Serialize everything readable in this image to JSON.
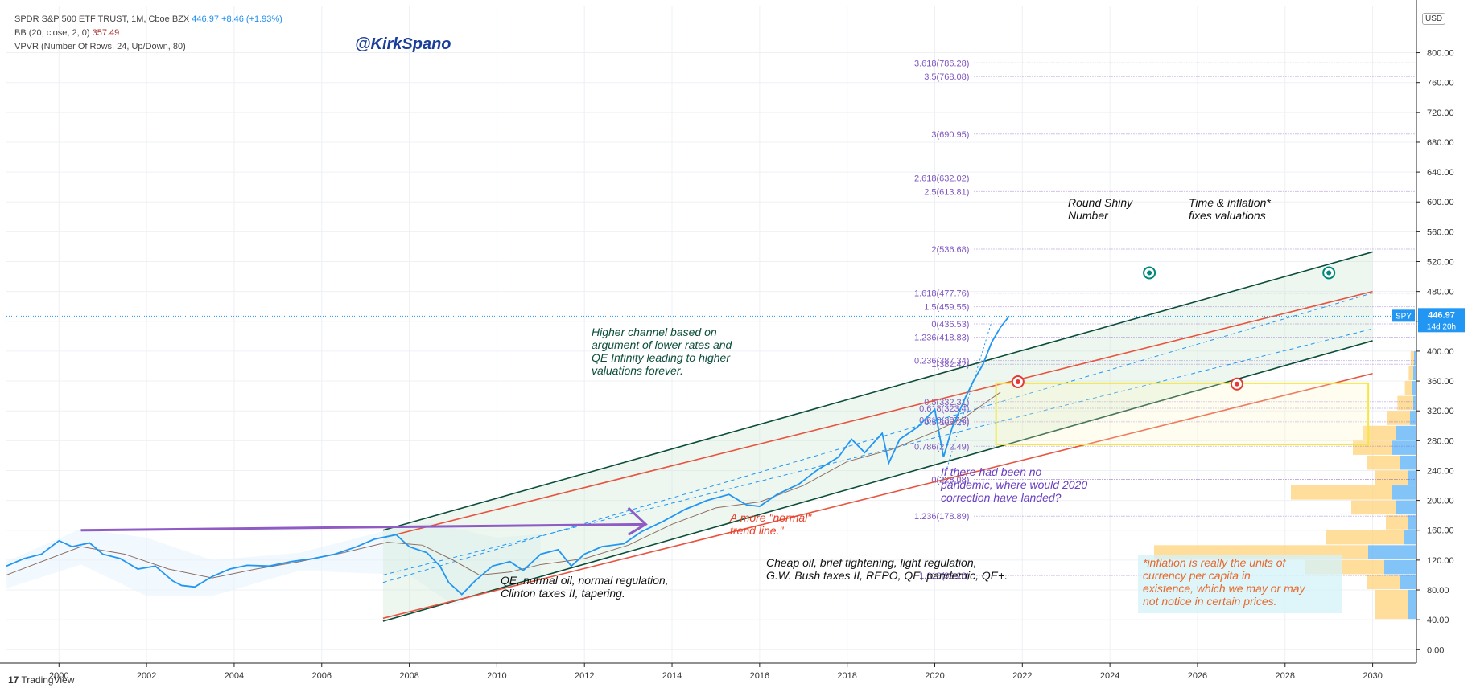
{
  "legend": {
    "title": "SPDR S&P 500 ETF TRUST, 1M, Cboe BZX",
    "price": "446.97",
    "change": "+8.46 (+1.93%)",
    "bb_label": "BB (20, close, 2, 0)",
    "bb_value": "357.49",
    "vpvr_label": "VPVR (Number Of Rows, 24, Up/Down, 80)"
  },
  "watermark": "@KirkSpano",
  "branding": "TradingView",
  "currency": "USD",
  "price_tag": {
    "ticker": "SPY",
    "price": "446.97",
    "countdown": "14d 20h"
  },
  "annotations": {
    "higher_channel": [
      "Higher channel based on",
      "argument of lower rates and",
      "QE Infinity leading to higher",
      "valuations forever."
    ],
    "round_shiny": [
      "Round Shiny",
      "Number"
    ],
    "time_inflation": [
      "Time & inflation*",
      "fixes valuations"
    ],
    "pandemic": [
      "If there had been no",
      "pandemic, where would 2020",
      "correction have landed?"
    ],
    "normal_trend": [
      "A more \"normal\"",
      "trend line.\""
    ],
    "cheap_oil": [
      "Cheap oil, brief tightening, light regulation,",
      "G.W. Bush taxes II, REPO, QE, pandemic, QE+."
    ],
    "qe_normal": [
      "QE, normal oil, normal regulation,",
      "Clinton taxes II, tapering."
    ],
    "inflation_note": [
      "*inflation is really the units of",
      "currency per capita in",
      "existence, which we may or may",
      "not notice in certain prices."
    ]
  },
  "fib_upper": [
    {
      "label": "3.618(786.28)",
      "value": 786.28
    },
    {
      "label": "3.5(768.08)",
      "value": 768.08
    },
    {
      "label": "3(690.95)",
      "value": 690.95
    },
    {
      "label": "2.618(632.02)",
      "value": 632.02
    },
    {
      "label": "2.5(613.81)",
      "value": 613.81
    },
    {
      "label": "2(536.68)",
      "value": 536.68
    },
    {
      "label": "1.618(477.76)",
      "value": 477.76
    },
    {
      "label": "1.5(459.55)",
      "value": 459.55
    },
    {
      "label": "0(436.53)",
      "value": 436.53
    },
    {
      "label": "1.236(418.83)",
      "value": 418.83
    },
    {
      "label": "0.236(387.34)",
      "value": 387.34
    },
    {
      "label": "1(382.42)",
      "value": 382.42
    },
    {
      "label": "0.5(332.31)",
      "value": 332.31
    },
    {
      "label": "0.618(323.4)",
      "value": 323.4
    },
    {
      "label": "0.618(307.7)",
      "value": 307.7
    },
    {
      "label": "0.5(305.29)",
      "value": 305.29
    },
    {
      "label": "0.786(272.49)",
      "value": 272.49
    },
    {
      "label": "1(228.08)",
      "value": 228.08
    },
    {
      "label": "0(228.18)",
      "value": 228.18
    },
    {
      "label": "1.236(178.89)",
      "value": 178.89
    },
    {
      "label": "1.618(99.26)",
      "value": 99.26
    }
  ],
  "colors": {
    "price": "#2196f3",
    "bb_basis": "#8d6e63",
    "channel_green": "#0b4d3a",
    "channel_red": "#e8533f",
    "fib": "#7e57c2",
    "box": "#f5e642",
    "purple_line": "#8e5cc4",
    "vol_up": "#64b5f6",
    "vol_down": "#ffd27a"
  },
  "chart_data": {
    "type": "line",
    "title": "SPDR S&P 500 ETF TRUST, 1M, Cboe BZX",
    "ylabel": "USD",
    "xlim": [
      1998.8,
      2031.0
    ],
    "ylim": [
      -18,
      862
    ],
    "x_ticks": [
      2000,
      2002,
      2004,
      2006,
      2008,
      2010,
      2012,
      2014,
      2016,
      2018,
      2020,
      2022,
      2024,
      2026,
      2028,
      2030
    ],
    "y_ticks": [
      0,
      40,
      80,
      120,
      160,
      200,
      240,
      280,
      320,
      360,
      400,
      440,
      480,
      520,
      560,
      600,
      640,
      680,
      720,
      760,
      800
    ],
    "series": [
      {
        "name": "SPY",
        "points": [
          [
            1998.8,
            112
          ],
          [
            1999.2,
            122
          ],
          [
            1999.6,
            128
          ],
          [
            2000.0,
            146
          ],
          [
            2000.3,
            138
          ],
          [
            2000.7,
            143
          ],
          [
            2001.0,
            128
          ],
          [
            2001.4,
            122
          ],
          [
            2001.8,
            108
          ],
          [
            2002.2,
            112
          ],
          [
            2002.6,
            92
          ],
          [
            2002.8,
            86
          ],
          [
            2003.1,
            84
          ],
          [
            2003.5,
            98
          ],
          [
            2003.9,
            108
          ],
          [
            2004.3,
            113
          ],
          [
            2004.8,
            112
          ],
          [
            2005.3,
            118
          ],
          [
            2005.8,
            122
          ],
          [
            2006.3,
            128
          ],
          [
            2006.8,
            138
          ],
          [
            2007.2,
            148
          ],
          [
            2007.7,
            154
          ],
          [
            2008.0,
            138
          ],
          [
            2008.4,
            130
          ],
          [
            2008.7,
            112
          ],
          [
            2008.9,
            90
          ],
          [
            2009.2,
            74
          ],
          [
            2009.5,
            92
          ],
          [
            2009.9,
            112
          ],
          [
            2010.3,
            118
          ],
          [
            2010.6,
            106
          ],
          [
            2011.0,
            128
          ],
          [
            2011.4,
            134
          ],
          [
            2011.7,
            112
          ],
          [
            2012.0,
            128
          ],
          [
            2012.4,
            138
          ],
          [
            2012.9,
            142
          ],
          [
            2013.3,
            158
          ],
          [
            2013.8,
            172
          ],
          [
            2014.3,
            188
          ],
          [
            2014.8,
            200
          ],
          [
            2015.3,
            208
          ],
          [
            2015.7,
            194
          ],
          [
            2016.0,
            192
          ],
          [
            2016.4,
            208
          ],
          [
            2016.9,
            222
          ],
          [
            2017.3,
            240
          ],
          [
            2017.8,
            258
          ],
          [
            2018.1,
            282
          ],
          [
            2018.4,
            264
          ],
          [
            2018.8,
            290
          ],
          [
            2018.95,
            250
          ],
          [
            2019.2,
            282
          ],
          [
            2019.6,
            298
          ],
          [
            2020.0,
            322
          ],
          [
            2020.2,
            258
          ],
          [
            2020.4,
            298
          ],
          [
            2020.7,
            338
          ],
          [
            2020.9,
            362
          ],
          [
            2021.1,
            382
          ],
          [
            2021.3,
            412
          ],
          [
            2021.5,
            432
          ],
          [
            2021.7,
            447
          ]
        ]
      },
      {
        "name": "BB basis",
        "points": [
          [
            1998.8,
            100
          ],
          [
            2000.5,
            138
          ],
          [
            2001.5,
            128
          ],
          [
            2002.5,
            108
          ],
          [
            2003.5,
            96
          ],
          [
            2004.5,
            108
          ],
          [
            2005.5,
            118
          ],
          [
            2006.5,
            130
          ],
          [
            2007.5,
            144
          ],
          [
            2008.3,
            140
          ],
          [
            2009.0,
            120
          ],
          [
            2009.6,
            100
          ],
          [
            2010.3,
            104
          ],
          [
            2011.0,
            114
          ],
          [
            2012.0,
            122
          ],
          [
            2013.0,
            140
          ],
          [
            2014.0,
            168
          ],
          [
            2015.0,
            190
          ],
          [
            2016.0,
            198
          ],
          [
            2017.0,
            220
          ],
          [
            2018.0,
            252
          ],
          [
            2019.0,
            268
          ],
          [
            2020.0,
            292
          ],
          [
            2020.7,
            312
          ],
          [
            2021.5,
            345
          ]
        ]
      }
    ],
    "channels": [
      {
        "color": "green",
        "x1": 2007.4,
        "y1": 160,
        "x2": 2030.0,
        "y2": 533
      },
      {
        "color": "green",
        "x1": 2007.4,
        "y1": 38,
        "x2": 2030.0,
        "y2": 414
      },
      {
        "color": "red",
        "x1": 2007.4,
        "y1": 42,
        "x2": 2030.0,
        "y2": 370
      },
      {
        "color": "red",
        "x1": 2007.4,
        "y1": 150,
        "x2": 2030.0,
        "y2": 480
      }
    ]
  }
}
